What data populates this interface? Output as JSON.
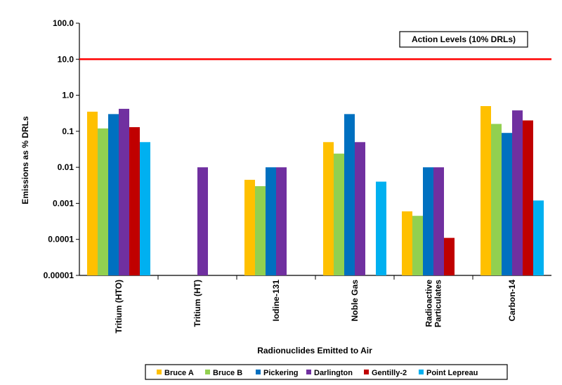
{
  "chart_data": {
    "type": "bar",
    "title": "",
    "xlabel": "Radionuclides Emitted to Air",
    "ylabel": "Emissions as % DRLs",
    "yscale": "log",
    "ylim": [
      1e-05,
      100
    ],
    "grid": false,
    "legend_position": "bottom",
    "y_tick_labels": [
      "100.0",
      "10.0",
      "1.0",
      "0.1",
      "0.01",
      "0.001",
      "0.0001",
      "0.00001"
    ],
    "y_tick_values": [
      100,
      10,
      1,
      0.1,
      0.01,
      0.001,
      0.0001,
      1e-05
    ],
    "categories": [
      [
        "Tritium (HTO)"
      ],
      [
        "Tritium (HT)"
      ],
      [
        "Iodine-131"
      ],
      [
        "Noble Gas"
      ],
      [
        "Radioactive",
        "Particulates"
      ],
      [
        "Carbon-14"
      ]
    ],
    "series": [
      {
        "name": "Bruce A",
        "color": "#FFC000",
        "values": [
          0.35,
          null,
          0.0045,
          0.05,
          0.0006,
          0.5
        ]
      },
      {
        "name": "Bruce B",
        "color": "#92D050",
        "values": [
          0.12,
          null,
          0.003,
          0.024,
          0.00045,
          0.16
        ]
      },
      {
        "name": "Pickering",
        "color": "#0070C0",
        "values": [
          0.3,
          null,
          0.01,
          0.3,
          0.01,
          0.09
        ]
      },
      {
        "name": "Darlington",
        "color": "#7030A0",
        "values": [
          0.42,
          0.01,
          0.01,
          0.05,
          0.01,
          0.38
        ]
      },
      {
        "name": "Gentilly-2",
        "color": "#C00000",
        "values": [
          0.13,
          null,
          null,
          null,
          0.00011,
          0.2
        ]
      },
      {
        "name": "Point Lepreau",
        "color": "#00B0F0",
        "values": [
          0.05,
          null,
          null,
          0.004,
          null,
          0.0012
        ]
      }
    ],
    "reference_line": {
      "value": 10,
      "color": "#FF0000"
    },
    "annotation": "Action Levels (10% DRLs)"
  }
}
